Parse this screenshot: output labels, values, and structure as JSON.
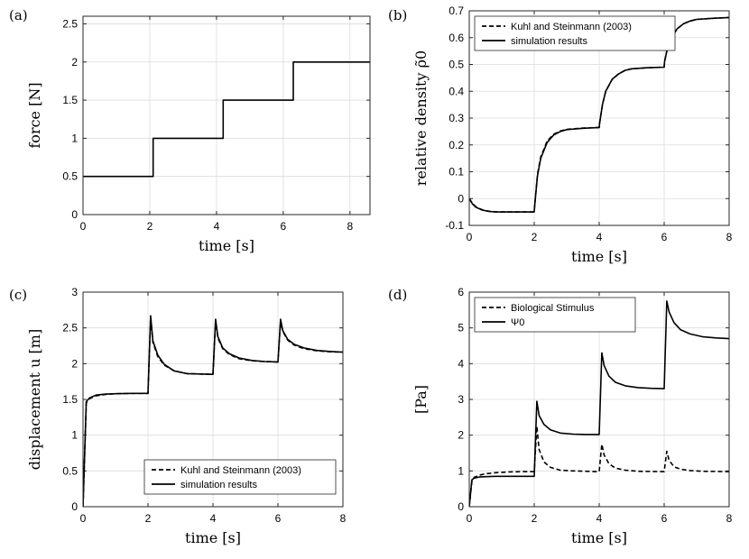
{
  "chart_data": [
    {
      "panel": "(a)",
      "type": "line",
      "xlabel": "time [s]",
      "ylabel": "force [N]",
      "xlim": [
        0,
        8.6
      ],
      "ylim": [
        0,
        2.6
      ],
      "xticks": [
        0,
        2,
        4,
        6,
        8
      ],
      "yticks": [
        0,
        0.5,
        1,
        1.5,
        2,
        2.5
      ],
      "ytick_labels": [
        "0",
        "0.5",
        "1",
        "1.5",
        "2",
        "2.5"
      ],
      "legend": [],
      "series": [
        {
          "name": "force",
          "style": "solid",
          "x": [
            0,
            2.1,
            2.1,
            4.2,
            4.2,
            6.3,
            6.3,
            8.6
          ],
          "y": [
            0.5,
            0.5,
            1.0,
            1.0,
            1.5,
            1.5,
            2.0,
            2.0
          ]
        }
      ]
    },
    {
      "panel": "(b)",
      "type": "line",
      "xlabel": "time [s]",
      "ylabel": "relative density ρ̃0",
      "xlim": [
        0,
        8
      ],
      "ylim": [
        -0.1,
        0.7
      ],
      "xticks": [
        0,
        2,
        4,
        6,
        8
      ],
      "yticks": [
        -0.1,
        0,
        0.1,
        0.2,
        0.3,
        0.4,
        0.5,
        0.6,
        0.7
      ],
      "ytick_labels": [
        "-0.1",
        "0",
        "0.1",
        "0.2",
        "0.3",
        "0.4",
        "0.5",
        "0.6",
        "0.7"
      ],
      "legend": [
        "Kuhl and Steinmann (2003)",
        "simulation results"
      ],
      "legend_position": "top-left",
      "series": [
        {
          "name": "Kuhl and Steinmann (2003)",
          "style": "dashed",
          "x": [
            0,
            0.1,
            0.2,
            0.4,
            0.6,
            0.8,
            1.0,
            1.5,
            2.0,
            2.01,
            2.1,
            2.2,
            2.4,
            2.6,
            2.8,
            3.0,
            3.5,
            4.0,
            4.01,
            4.1,
            4.2,
            4.4,
            4.6,
            4.8,
            5.0,
            5.5,
            6.0,
            6.01,
            6.1,
            6.2,
            6.4,
            6.6,
            6.8,
            7.0,
            7.5,
            8.0
          ],
          "y": [
            0,
            -0.018,
            -0.03,
            -0.042,
            -0.047,
            -0.049,
            -0.05,
            -0.05,
            -0.05,
            -0.03,
            0.09,
            0.155,
            0.215,
            0.24,
            0.252,
            0.258,
            0.263,
            0.265,
            0.28,
            0.35,
            0.4,
            0.445,
            0.465,
            0.478,
            0.484,
            0.488,
            0.49,
            0.51,
            0.56,
            0.595,
            0.633,
            0.652,
            0.662,
            0.668,
            0.672,
            0.675
          ]
        },
        {
          "name": "simulation results",
          "style": "solid",
          "x": [
            0,
            0.1,
            0.2,
            0.4,
            0.6,
            0.8,
            1.0,
            1.5,
            2.0,
            2.01,
            2.1,
            2.2,
            2.4,
            2.6,
            2.8,
            3.0,
            3.5,
            4.0,
            4.01,
            4.1,
            4.2,
            4.4,
            4.6,
            4.8,
            5.0,
            5.5,
            6.0,
            6.01,
            6.1,
            6.2,
            6.4,
            6.6,
            6.8,
            7.0,
            7.5,
            8.0
          ],
          "y": [
            0,
            -0.02,
            -0.032,
            -0.043,
            -0.048,
            -0.05,
            -0.05,
            -0.05,
            -0.05,
            -0.03,
            0.085,
            0.15,
            0.21,
            0.237,
            0.25,
            0.257,
            0.262,
            0.265,
            0.28,
            0.35,
            0.4,
            0.445,
            0.465,
            0.478,
            0.484,
            0.488,
            0.49,
            0.51,
            0.56,
            0.595,
            0.633,
            0.652,
            0.662,
            0.668,
            0.672,
            0.675
          ]
        }
      ]
    },
    {
      "panel": "(c)",
      "type": "line",
      "xlabel": "time [s]",
      "ylabel": "displacement u [m]",
      "xlim": [
        0,
        8
      ],
      "ylim": [
        0,
        3
      ],
      "xticks": [
        0,
        2,
        4,
        6,
        8
      ],
      "yticks": [
        0,
        0.5,
        1,
        1.5,
        2,
        2.5,
        3
      ],
      "ytick_labels": [
        "0",
        "0.5",
        "1",
        "1.5",
        "2",
        "2.5",
        "3"
      ],
      "legend": [
        "Kuhl and Steinmann (2003)",
        "simulation results"
      ],
      "legend_position": "bottom-right",
      "series": [
        {
          "name": "Kuhl and Steinmann (2003)",
          "style": "dashed",
          "x": [
            0,
            0.1,
            0.2,
            0.4,
            0.7,
            1.0,
            1.5,
            2.0,
            2.08,
            2.15,
            2.3,
            2.5,
            2.8,
            3.2,
            3.6,
            4.0,
            4.08,
            4.15,
            4.3,
            4.5,
            4.8,
            5.2,
            5.6,
            6.0,
            6.08,
            6.15,
            6.3,
            6.5,
            6.8,
            7.2,
            7.6,
            8.0
          ],
          "y": [
            0,
            1.45,
            1.51,
            1.55,
            1.57,
            1.58,
            1.585,
            1.585,
            2.65,
            2.3,
            2.1,
            1.98,
            1.9,
            1.86,
            1.855,
            1.85,
            2.6,
            2.36,
            2.21,
            2.13,
            2.07,
            2.04,
            2.03,
            2.025,
            2.6,
            2.45,
            2.33,
            2.26,
            2.21,
            2.18,
            2.165,
            2.16
          ]
        },
        {
          "name": "simulation results",
          "style": "solid",
          "x": [
            0,
            0.1,
            0.2,
            0.4,
            0.7,
            1.0,
            1.5,
            2.0,
            2.08,
            2.15,
            2.3,
            2.5,
            2.8,
            3.2,
            3.6,
            4.0,
            4.08,
            4.15,
            4.3,
            4.5,
            4.8,
            5.2,
            5.6,
            6.0,
            6.08,
            6.15,
            6.3,
            6.5,
            6.8,
            7.2,
            7.6,
            8.0
          ],
          "y": [
            0,
            1.47,
            1.52,
            1.56,
            1.575,
            1.58,
            1.585,
            1.585,
            2.67,
            2.32,
            2.12,
            1.99,
            1.9,
            1.86,
            1.855,
            1.85,
            2.62,
            2.38,
            2.22,
            2.14,
            2.08,
            2.045,
            2.03,
            2.025,
            2.62,
            2.46,
            2.34,
            2.27,
            2.22,
            2.185,
            2.17,
            2.16
          ]
        }
      ]
    },
    {
      "panel": "(d)",
      "type": "line",
      "xlabel": "time [s]",
      "ylabel": "[Pa]",
      "xlim": [
        0,
        8
      ],
      "ylim": [
        0,
        6
      ],
      "xticks": [
        0,
        2,
        4,
        6,
        8
      ],
      "yticks": [
        0,
        1,
        2,
        3,
        4,
        5,
        6
      ],
      "ytick_labels": [
        "0",
        "1",
        "2",
        "3",
        "4",
        "5",
        "6"
      ],
      "legend": [
        "Biological Stimulus",
        "Ψ0"
      ],
      "legend_position": "top-left",
      "series": [
        {
          "name": "Biological Stimulus",
          "style": "dashed",
          "x": [
            0,
            0.08,
            0.15,
            0.3,
            0.5,
            0.8,
            1.2,
            1.6,
            2.0,
            2.08,
            2.15,
            2.3,
            2.5,
            2.8,
            3.2,
            3.6,
            4.0,
            4.08,
            4.15,
            4.3,
            4.5,
            4.8,
            5.2,
            5.6,
            6.0,
            6.08,
            6.15,
            6.3,
            6.5,
            6.8,
            7.2,
            7.6,
            8.0
          ],
          "y": [
            0,
            0.7,
            0.82,
            0.88,
            0.92,
            0.95,
            0.97,
            0.98,
            0.98,
            2.25,
            1.6,
            1.25,
            1.1,
            1.02,
            1.0,
            0.99,
            0.98,
            1.75,
            1.45,
            1.2,
            1.08,
            1.02,
            0.99,
            0.985,
            0.98,
            1.55,
            1.3,
            1.12,
            1.05,
            1.01,
            0.99,
            0.985,
            0.98
          ]
        },
        {
          "name": "Ψ0",
          "style": "solid",
          "x": [
            0,
            0.08,
            0.15,
            0.3,
            0.5,
            0.8,
            1.2,
            1.6,
            2.0,
            2.08,
            2.15,
            2.3,
            2.5,
            2.8,
            3.2,
            3.6,
            4.0,
            4.08,
            4.15,
            4.3,
            4.5,
            4.8,
            5.2,
            5.6,
            6.0,
            6.08,
            6.15,
            6.3,
            6.5,
            6.8,
            7.2,
            7.6,
            8.0
          ],
          "y": [
            0,
            0.75,
            0.8,
            0.83,
            0.84,
            0.85,
            0.85,
            0.85,
            0.85,
            2.95,
            2.55,
            2.3,
            2.15,
            2.06,
            2.03,
            2.02,
            2.02,
            4.3,
            3.95,
            3.65,
            3.48,
            3.38,
            3.33,
            3.31,
            3.3,
            5.75,
            5.45,
            5.15,
            4.95,
            4.83,
            4.75,
            4.72,
            4.7
          ]
        }
      ]
    }
  ]
}
